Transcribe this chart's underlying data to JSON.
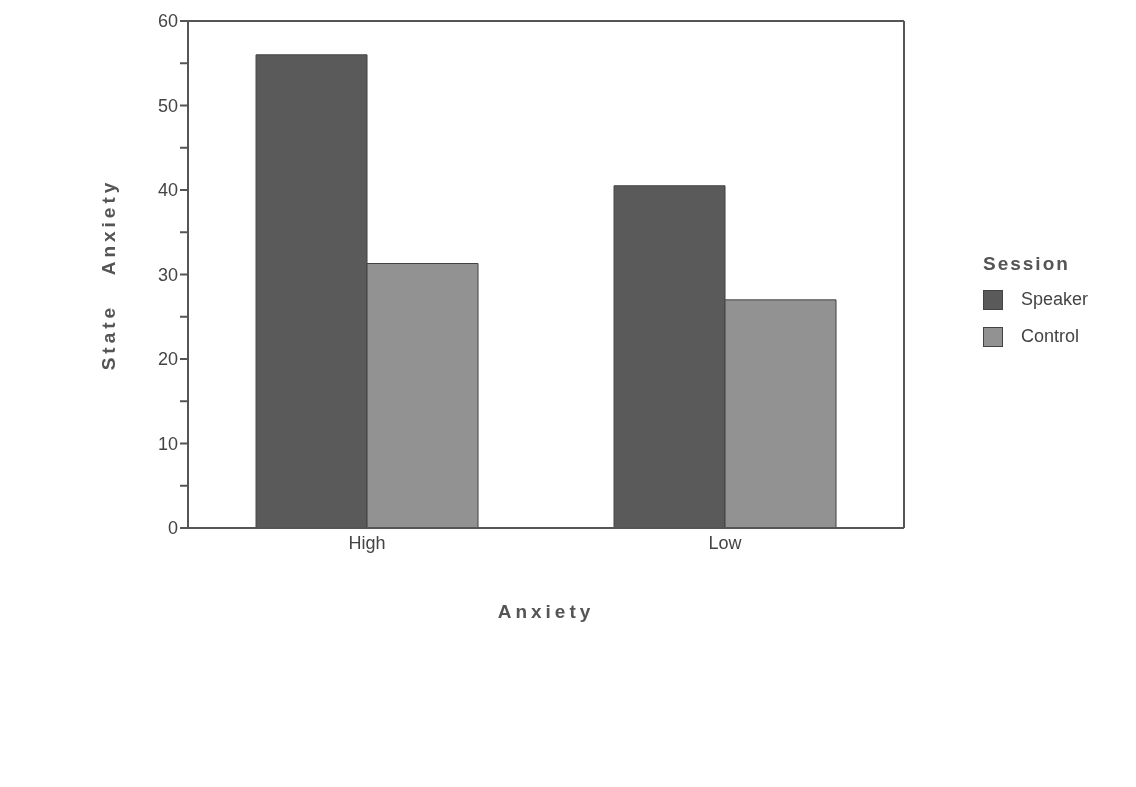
{
  "chart_data": {
    "type": "bar",
    "xlabel": "Anxiety",
    "ylabel": "State Anxiety",
    "legend_title": "Session",
    "categories": [
      "High",
      "Low"
    ],
    "series": [
      {
        "name": "Speaker",
        "color": "#5a5a5a",
        "values": [
          56,
          40.5
        ]
      },
      {
        "name": "Control",
        "color": "#929292",
        "values": [
          31.3,
          27
        ]
      }
    ],
    "ylim": [
      0,
      60
    ],
    "yticks": [
      0,
      {
        "value": 5,
        "label": null
      },
      10,
      {
        "value": 15,
        "label": null
      },
      20,
      {
        "value": 25,
        "label": null
      },
      30,
      {
        "value": 35,
        "label": null
      },
      40,
      {
        "value": 45,
        "label": null
      },
      50,
      {
        "value": 55,
        "label": null
      },
      60
    ],
    "grid": false,
    "legend": "right"
  }
}
